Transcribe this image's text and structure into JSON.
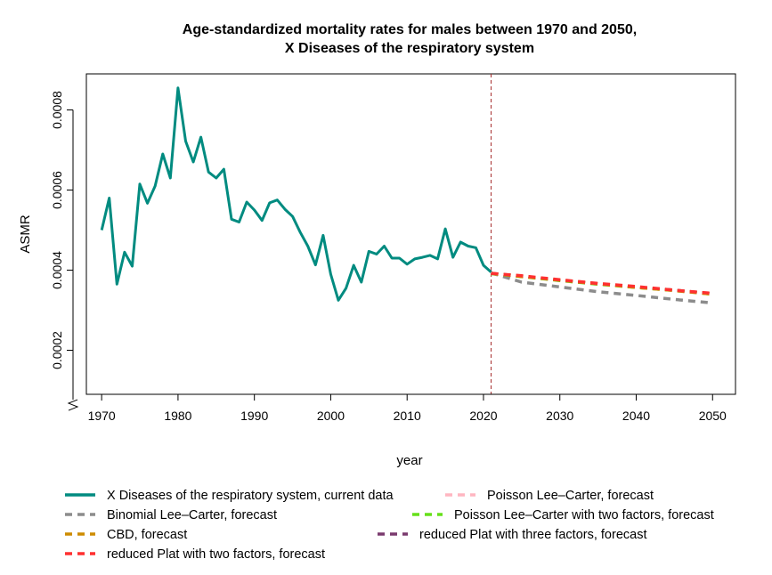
{
  "chart_data": {
    "type": "line",
    "title": [
      "Age-standardized mortality rates for males between 1970 and 2050,",
      "X Diseases of the respiratory system"
    ],
    "xlabel": "year",
    "ylabel": "ASMR",
    "xlim": [
      1968,
      2053
    ],
    "ylim": [
      9e-05,
      0.00089
    ],
    "x_ticks": [
      1970,
      1980,
      1990,
      2000,
      2010,
      2020,
      2030,
      2040,
      2050
    ],
    "y_ticks": [
      0.0002,
      0.0004,
      0.0006,
      0.0008
    ],
    "y_tick_labels": [
      "0.0002",
      "0.0004",
      "0.0006",
      "0.0008"
    ],
    "axis_break": "bottom-left of y axis",
    "vline": {
      "x": 2021,
      "color": "#a52a2a"
    },
    "grid": false,
    "legend_position": "bottom",
    "series": [
      {
        "name": "X Diseases of the respiratory system, current data",
        "color": "#008b80",
        "style": "solid",
        "x": [
          1970,
          1971,
          1972,
          1973,
          1974,
          1975,
          1976,
          1977,
          1978,
          1979,
          1980,
          1981,
          1982,
          1983,
          1984,
          1985,
          1986,
          1987,
          1988,
          1989,
          1990,
          1991,
          1992,
          1993,
          1994,
          1995,
          1996,
          1997,
          1998,
          1999,
          2000,
          2001,
          2002,
          2003,
          2004,
          2005,
          2006,
          2007,
          2008,
          2009,
          2010,
          2011,
          2012,
          2013,
          2014,
          2015,
          2016,
          2017,
          2018,
          2019,
          2020,
          2021
        ],
        "y": [
          0.0005,
          0.00058,
          0.000365,
          0.000445,
          0.00041,
          0.000615,
          0.000567,
          0.00061,
          0.00069,
          0.00063,
          0.000855,
          0.000722,
          0.00067,
          0.000732,
          0.000645,
          0.00063,
          0.000652,
          0.000527,
          0.00052,
          0.00057,
          0.00055,
          0.000524,
          0.000568,
          0.000575,
          0.000552,
          0.000534,
          0.000495,
          0.00046,
          0.000413,
          0.000487,
          0.00039,
          0.000325,
          0.000355,
          0.000412,
          0.00037,
          0.000447,
          0.00044,
          0.00046,
          0.00043,
          0.00043,
          0.000415,
          0.000428,
          0.000432,
          0.000437,
          0.000428,
          0.000503,
          0.000432,
          0.00047,
          0.00046,
          0.000456,
          0.000412,
          0.000395
        ]
      },
      {
        "name": "Binomial Lee–Carter, forecast",
        "color": "#8c8c8c",
        "style": "dashed",
        "x": [
          2021,
          2025,
          2030,
          2035,
          2040,
          2045,
          2050
        ],
        "y": [
          0.000393,
          0.00037,
          0.000358,
          0.000346,
          0.000337,
          0.000327,
          0.000318
        ]
      },
      {
        "name": "CBD, forecast",
        "color": "#cd8c00",
        "style": "dashed",
        "x": [
          2021,
          2025,
          2030,
          2035,
          2040,
          2045,
          2050
        ],
        "y": [
          0.000392,
          0.000384,
          0.000375,
          0.000366,
          0.000357,
          0.000349,
          0.00034
        ]
      },
      {
        "name": "reduced Plat with two factors, forecast",
        "color": "#ff3030",
        "style": "dashed",
        "x": [
          2021,
          2025,
          2030,
          2035,
          2040,
          2045,
          2050
        ],
        "y": [
          0.000392,
          0.000386,
          0.000376,
          0.000367,
          0.000359,
          0.00035,
          0.000342
        ]
      },
      {
        "name": "Poisson Lee–Carter, forecast",
        "color": "#ffb6c1",
        "style": "dashed",
        "x": [
          2021,
          2025,
          2030,
          2035,
          2040,
          2045,
          2050
        ],
        "y": [
          0.000391,
          0.000385,
          0.000375,
          0.000366,
          0.000358,
          0.00035,
          0.000341
        ]
      },
      {
        "name": "Poisson Lee–Carter with two factors, forecast",
        "color": "#66e01a",
        "style": "dashed",
        "x": [
          2021,
          2025,
          2030,
          2035,
          2040,
          2045,
          2050
        ],
        "y": [
          0.000391,
          0.000384,
          0.000374,
          0.000365,
          0.000357,
          0.000349,
          0.00034
        ]
      },
      {
        "name": "reduced Plat with three factors, forecast",
        "color": "#7a3a6e",
        "style": "dashed",
        "x": [
          2021,
          2025,
          2030,
          2035,
          2040,
          2045,
          2050
        ],
        "y": [
          0.000392,
          0.000385,
          0.000375,
          0.000366,
          0.000358,
          0.00035,
          0.000341
        ]
      }
    ],
    "legend_order": [
      0,
      4,
      1,
      5,
      2,
      6,
      3
    ]
  }
}
